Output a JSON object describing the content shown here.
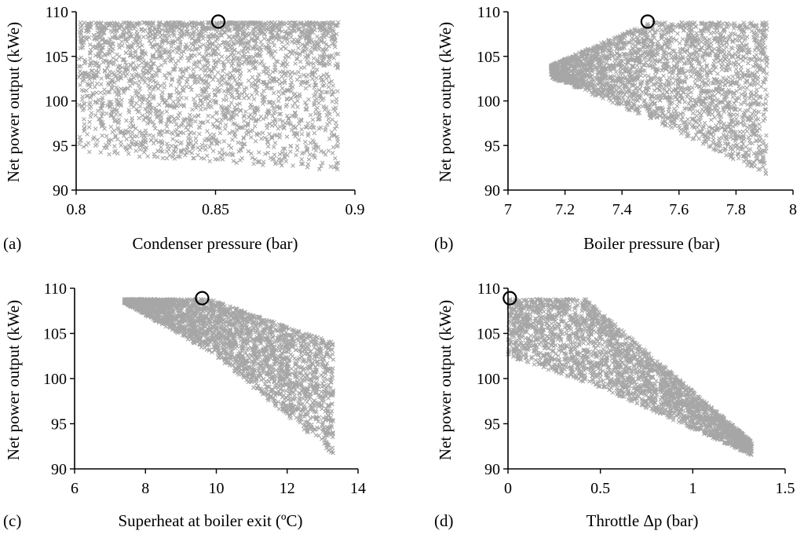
{
  "chart_data": [
    {
      "panel": "(a)",
      "type": "scatter",
      "xlabel": "Condenser pressure (bar)",
      "ylabel": "Net power output (kWe)",
      "xlim": [
        0.8,
        0.9
      ],
      "ylim": [
        90,
        110
      ],
      "xticks": [
        "0.8",
        "0.85",
        "0.9"
      ],
      "xtick_values": [
        0.8,
        0.85,
        0.9
      ],
      "yticks": [
        "90",
        "95",
        "100",
        "105",
        "110"
      ],
      "ytick_values": [
        90,
        95,
        100,
        105,
        110
      ],
      "point_color": "#a6a6a6",
      "marker": "x",
      "optimum": {
        "x": 0.851,
        "y": 108.9
      },
      "cloud": {
        "x_range": [
          0.801,
          0.894
        ],
        "y_max": 108.8,
        "y_min_at_left": 94.2,
        "y_min_at_right": 92.2,
        "count": 2600
      }
    },
    {
      "panel": "(b)",
      "type": "scatter",
      "xlabel": "Boiler pressure (bar)",
      "ylabel": "Net power output (kWe)",
      "xlim": [
        7,
        8
      ],
      "ylim": [
        90,
        110
      ],
      "xticks": [
        "7",
        "7.2",
        "7.4",
        "7.6",
        "7.8",
        "8"
      ],
      "xtick_values": [
        7,
        7.2,
        7.4,
        7.6,
        7.8,
        8
      ],
      "yticks": [
        "90",
        "95",
        "100",
        "105",
        "110"
      ],
      "ytick_values": [
        90,
        95,
        100,
        105,
        110
      ],
      "point_color": "#a6a6a6",
      "marker": "x",
      "optimum": {
        "x": 7.49,
        "y": 108.9
      },
      "cloud": {
        "x_range": [
          7.15,
          7.91
        ],
        "top_edge": [
          [
            7.15,
            104
          ],
          [
            7.4,
            107.5
          ],
          [
            7.5,
            108.8
          ],
          [
            7.91,
            108.8
          ]
        ],
        "bottom_edge": [
          [
            7.15,
            102.6
          ],
          [
            7.5,
            98
          ],
          [
            7.91,
            91.6
          ]
        ],
        "count": 2600
      }
    },
    {
      "panel": "(c)",
      "type": "scatter",
      "xlabel": "Superheat at boiler exit (ºC)",
      "ylabel": "Net power output (kWe)",
      "xlim": [
        6,
        14
      ],
      "ylim": [
        90,
        110
      ],
      "xticks": [
        "6",
        "8",
        "10",
        "12",
        "14"
      ],
      "xtick_values": [
        6,
        8,
        10,
        12,
        14
      ],
      "yticks": [
        "90",
        "95",
        "100",
        "105",
        "110"
      ],
      "ytick_values": [
        90,
        95,
        100,
        105,
        110
      ],
      "point_color": "#a6a6a6",
      "marker": "x",
      "optimum": {
        "x": 9.6,
        "y": 108.9
      },
      "cloud": {
        "x_range": [
          7.4,
          13.3
        ],
        "top_edge": [
          [
            7.4,
            108.8
          ],
          [
            9.8,
            108.8
          ],
          [
            13.3,
            104
          ]
        ],
        "bottom_edge": [
          [
            7.4,
            108.4
          ],
          [
            10,
            102.5
          ],
          [
            13.3,
            91.5
          ]
        ],
        "count": 2800
      }
    },
    {
      "panel": "(d)",
      "type": "scatter",
      "xlabel": "Throttle Δp (bar)",
      "ylabel": "Net power output (kWe)",
      "xlim": [
        0,
        1.5
      ],
      "ylim": [
        90,
        110
      ],
      "xticks": [
        "0",
        "0.5",
        "1",
        "1.5"
      ],
      "xtick_values": [
        0,
        0.5,
        1,
        1.5
      ],
      "yticks": [
        "90",
        "95",
        "100",
        "105",
        "110"
      ],
      "ytick_values": [
        90,
        95,
        100,
        105,
        110
      ],
      "point_color": "#a6a6a6",
      "marker": "x",
      "optimum": {
        "x": 0.01,
        "y": 108.9
      },
      "cloud": {
        "x_range": [
          0,
          1.32
        ],
        "top_edge": [
          [
            0,
            108.8
          ],
          [
            0.42,
            108.8
          ],
          [
            1.32,
            93
          ]
        ],
        "bottom_edge": [
          [
            0,
            102.5
          ],
          [
            0.5,
            99
          ],
          [
            1.32,
            91.5
          ]
        ],
        "count": 2800
      }
    }
  ]
}
